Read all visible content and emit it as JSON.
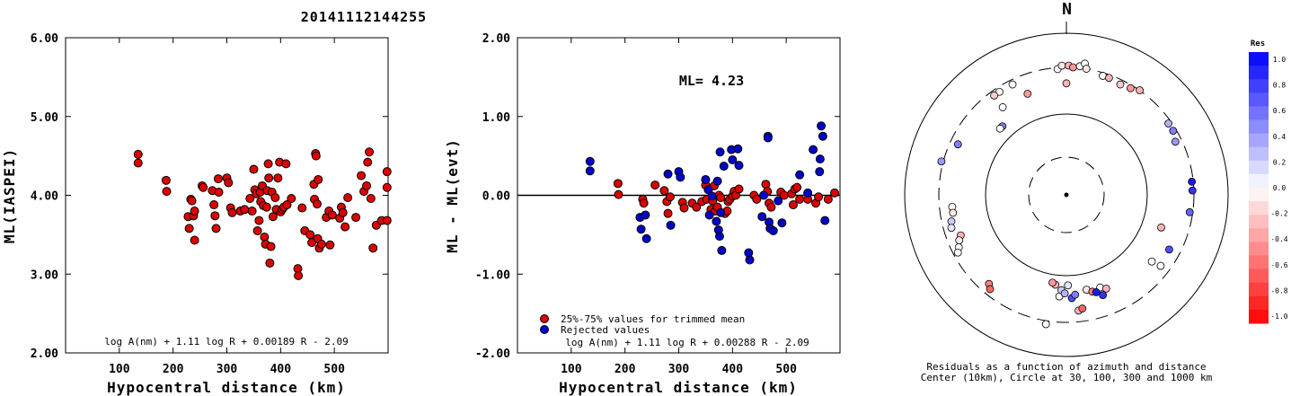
{
  "figure_title": "20141112144255",
  "chart_data": [
    {
      "type": "scatter",
      "xlabel": "Hypocentral distance (km)",
      "ylabel": "ML(IASPEI)",
      "xlim": [
        0,
        600
      ],
      "ylim": [
        2.0,
        6.0
      ],
      "xticks": [
        "100",
        "200",
        "300",
        "400",
        "500"
      ],
      "yticks": [
        "2.00",
        "3.00",
        "4.00",
        "5.00",
        "6.00"
      ],
      "formula": "log A(nm) + 1.11 log R + 0.00189 R - 2.09",
      "series": [
        {
          "color": "#dd0000",
          "points": [
            [
              135,
              4.52
            ],
            [
              135,
              4.41
            ],
            [
              187,
              4.19
            ],
            [
              188,
              4.05
            ],
            [
              228,
              3.73
            ],
            [
              230,
              3.58
            ],
            [
              233,
              3.95
            ],
            [
              235,
              3.93
            ],
            [
              238,
              3.74
            ],
            [
              240,
              3.43
            ],
            [
              240,
              3.8
            ],
            [
              254,
              4.12
            ],
            [
              256,
              4.1
            ],
            [
              273,
              4.06
            ],
            [
              276,
              3.88
            ],
            [
              278,
              3.74
            ],
            [
              280,
              3.58
            ],
            [
              284,
              4.21
            ],
            [
              285,
              4.04
            ],
            [
              300,
              4.22
            ],
            [
              303,
              4.16
            ],
            [
              307,
              3.84
            ],
            [
              310,
              3.78
            ],
            [
              325,
              3.8
            ],
            [
              333,
              3.82
            ],
            [
              343,
              3.96
            ],
            [
              347,
              3.8
            ],
            [
              350,
              4.33
            ],
            [
              352,
              4.07
            ],
            [
              355,
              4.02
            ],
            [
              357,
              3.55
            ],
            [
              360,
              3.68
            ],
            [
              362,
              4.04
            ],
            [
              363,
              3.92
            ],
            [
              366,
              4.12
            ],
            [
              368,
              3.87
            ],
            [
              370,
              3.47
            ],
            [
              372,
              3.38
            ],
            [
              374,
              3.85
            ],
            [
              375,
              4.06
            ],
            [
              377,
              4.4
            ],
            [
              378,
              4.22
            ],
            [
              380,
              3.14
            ],
            [
              382,
              3.35
            ],
            [
              384,
              4.04
            ],
            [
              386,
              3.73
            ],
            [
              390,
              3.97
            ],
            [
              392,
              3.82
            ],
            [
              395,
              4.22
            ],
            [
              398,
              4.42
            ],
            [
              400,
              3.79
            ],
            [
              403,
              3.82
            ],
            [
              406,
              3.85
            ],
            [
              410,
              4.4
            ],
            [
              412,
              3.88
            ],
            [
              420,
              3.96
            ],
            [
              432,
              3.07
            ],
            [
              433,
              2.98
            ],
            [
              440,
              3.84
            ],
            [
              445,
              3.55
            ],
            [
              455,
              3.5
            ],
            [
              458,
              3.4
            ],
            [
              462,
              4.14
            ],
            [
              463,
              3.95
            ],
            [
              465,
              4.53
            ],
            [
              466,
              4.5
            ],
            [
              468,
              3.89
            ],
            [
              469,
              3.45
            ],
            [
              470,
              4.2
            ],
            [
              472,
              3.33
            ],
            [
              476,
              3.38
            ],
            [
              485,
              3.72
            ],
            [
              490,
              3.8
            ],
            [
              492,
              3.37
            ],
            [
              496,
              3.75
            ],
            [
              510,
              3.71
            ],
            [
              513,
              3.85
            ],
            [
              516,
              3.78
            ],
            [
              520,
              3.6
            ],
            [
              525,
              3.97
            ],
            [
              540,
              3.72
            ],
            [
              550,
              4.25
            ],
            [
              555,
              4.05
            ],
            [
              560,
              4.12
            ],
            [
              562,
              4.42
            ],
            [
              565,
              4.55
            ],
            [
              568,
              3.96
            ],
            [
              572,
              3.33
            ],
            [
              578,
              3.62
            ],
            [
              588,
              3.68
            ],
            [
              598,
              3.68
            ],
            [
              598,
              4.1
            ],
            [
              598,
              4.3
            ]
          ]
        }
      ]
    },
    {
      "type": "scatter",
      "xlabel": "Hypocentral distance (km)",
      "ylabel": "ML - ML(evt)",
      "xlim": [
        0,
        600
      ],
      "ylim": [
        -2.0,
        2.0
      ],
      "xticks": [
        "100",
        "200",
        "300",
        "400",
        "500"
      ],
      "yticks": [
        "-2.00",
        "-1.00",
        "0.00",
        "1.00",
        "2.00"
      ],
      "annotation": "ML= 4.23",
      "formula": "log A(nm) + 1.11 log R + 0.00288 R - 2.09",
      "legend": [
        {
          "label": "25%-75% values for trimmed mean",
          "color": "#dd0000"
        },
        {
          "label": "Rejected values",
          "color": "#0000cc"
        }
      ],
      "series": [
        {
          "name": "25%-75% values for trimmed mean",
          "color": "#dd0000",
          "points": [
            [
              187,
              0.15
            ],
            [
              188,
              0.01
            ],
            [
              233,
              -0.05
            ],
            [
              235,
              -0.1
            ],
            [
              256,
              0.13
            ],
            [
              273,
              0.06
            ],
            [
              278,
              -0.08
            ],
            [
              280,
              -0.23
            ],
            [
              284,
              -0.02
            ],
            [
              307,
              -0.09
            ],
            [
              310,
              -0.16
            ],
            [
              325,
              -0.1
            ],
            [
              333,
              -0.15
            ],
            [
              343,
              -0.08
            ],
            [
              350,
              0.13
            ],
            [
              352,
              -0.05
            ],
            [
              360,
              -0.18
            ],
            [
              363,
              -0.07
            ],
            [
              366,
              0.12
            ],
            [
              368,
              -0.2
            ],
            [
              372,
              -0.15
            ],
            [
              375,
              0.0
            ],
            [
              378,
              -0.03
            ],
            [
              386,
              -0.23
            ],
            [
              390,
              -0.2
            ],
            [
              392,
              -0.08
            ],
            [
              395,
              -0.05
            ],
            [
              400,
              -0.01
            ],
            [
              403,
              0.05
            ],
            [
              406,
              0.0
            ],
            [
              412,
              0.08
            ],
            [
              440,
              0.0
            ],
            [
              445,
              -0.05
            ],
            [
              462,
              0.14
            ],
            [
              465,
              0.05
            ],
            [
              468,
              -0.1
            ],
            [
              472,
              -0.15
            ],
            [
              490,
              0.04
            ],
            [
              496,
              0.0
            ],
            [
              510,
              0.02
            ],
            [
              513,
              -0.12
            ],
            [
              516,
              0.08
            ],
            [
              520,
              0.1
            ],
            [
              525,
              -0.05
            ],
            [
              540,
              -0.05
            ],
            [
              555,
              -0.1
            ],
            [
              560,
              -0.02
            ],
            [
              578,
              -0.05
            ],
            [
              590,
              0.03
            ]
          ]
        },
        {
          "name": "Rejected values",
          "color": "#0000cc",
          "points": [
            [
              135,
              0.43
            ],
            [
              135,
              0.31
            ],
            [
              228,
              -0.28
            ],
            [
              230,
              -0.43
            ],
            [
              238,
              -0.25
            ],
            [
              240,
              -0.55
            ],
            [
              280,
              0.27
            ],
            [
              285,
              -0.38
            ],
            [
              300,
              0.3
            ],
            [
              303,
              0.23
            ],
            [
              350,
              0.2
            ],
            [
              355,
              0.07
            ],
            [
              357,
              -0.25
            ],
            [
              362,
              -0.01
            ],
            [
              370,
              -0.33
            ],
            [
              372,
              0.18
            ],
            [
              374,
              -0.44
            ],
            [
              376,
              -0.52
            ],
            [
              377,
              0.55
            ],
            [
              378,
              -0.22
            ],
            [
              380,
              -0.7
            ],
            [
              384,
              0.37
            ],
            [
              398,
              0.58
            ],
            [
              400,
              0.45
            ],
            [
              410,
              0.59
            ],
            [
              412,
              0.38
            ],
            [
              430,
              -0.73
            ],
            [
              432,
              -0.82
            ],
            [
              455,
              -0.27
            ],
            [
              458,
              0.0
            ],
            [
              466,
              0.75
            ],
            [
              466,
              0.73
            ],
            [
              468,
              -0.34
            ],
            [
              470,
              -0.42
            ],
            [
              476,
              -0.45
            ],
            [
              485,
              -0.07
            ],
            [
              492,
              -0.35
            ],
            [
              525,
              0.26
            ],
            [
              540,
              0.03
            ],
            [
              550,
              0.58
            ],
            [
              562,
              0.3
            ],
            [
              563,
              0.46
            ],
            [
              565,
              0.88
            ],
            [
              568,
              0.75
            ],
            [
              572,
              -0.32
            ]
          ]
        }
      ]
    },
    {
      "type": "polar-scatter",
      "north_label": "N",
      "caption_line1": "Residuals as a function of azimuth and distance",
      "caption_line2": "Center (10km), Circle at 30, 100, 300 and 1000 km",
      "colorbar_title": "Res",
      "colorbar_ticks": [
        "1.0",
        "0.8",
        "0.6",
        "0.4",
        "0.2",
        "0.0",
        "-0.2",
        "-0.4",
        "-0.6",
        "-0.8",
        "-1.0"
      ],
      "points": [
        {
          "az": -4,
          "r": 0.78,
          "res": 0.0
        },
        {
          "az": -2,
          "r": 0.8,
          "res": -0.1
        },
        {
          "az": 1,
          "r": 0.8,
          "res": -0.3
        },
        {
          "az": 3,
          "r": 0.79,
          "res": -0.4
        },
        {
          "az": 6,
          "r": 0.8,
          "res": 0.0
        },
        {
          "az": 8,
          "r": 0.82,
          "res": 0.0
        },
        {
          "az": 9,
          "r": 0.79,
          "res": -0.1
        },
        {
          "az": 0,
          "r": 0.69,
          "res": -0.3
        },
        {
          "az": 17,
          "r": 0.77,
          "res": 0.0
        },
        {
          "az": 20,
          "r": 0.77,
          "res": -0.3
        },
        {
          "az": 26,
          "r": 0.76,
          "res": -0.2
        },
        {
          "az": 31,
          "r": 0.77,
          "res": -0.4
        },
        {
          "az": 35,
          "r": 0.79,
          "res": -0.3
        },
        {
          "az": -26,
          "r": 0.76,
          "res": 0.0
        },
        {
          "az": -21,
          "r": 0.67,
          "res": -0.4
        },
        {
          "az": -33,
          "r": 0.76,
          "res": 0.0
        },
        {
          "az": -36,
          "r": 0.76,
          "res": -0.2
        },
        {
          "az": -36,
          "r": 0.67,
          "res": 0.0
        },
        {
          "az": -43,
          "r": 0.58,
          "res": 0.5
        },
        {
          "az": -45,
          "r": 0.58,
          "res": 0.0
        },
        {
          "az": 55,
          "r": 0.77,
          "res": 0.3
        },
        {
          "az": 59,
          "r": 0.77,
          "res": 0.5
        },
        {
          "az": 64,
          "r": 0.75,
          "res": 0.4
        },
        {
          "az": -65,
          "r": 0.74,
          "res": 0.5
        },
        {
          "az": -75,
          "r": 0.8,
          "res": 0.4
        },
        {
          "az": 84,
          "r": 0.78,
          "res": 0.9
        },
        {
          "az": 88,
          "r": 0.78,
          "res": 0.8
        },
        {
          "az": 98,
          "r": 0.77,
          "res": 0.6
        },
        {
          "az": -96,
          "r": 0.71,
          "res": 0.0
        },
        {
          "az": -99,
          "r": 0.71,
          "res": -0.1
        },
        {
          "az": -103,
          "r": 0.73,
          "res": 0.2
        },
        {
          "az": -106,
          "r": 0.74,
          "res": 0.1
        },
        {
          "az": -111,
          "r": 0.7,
          "res": -0.3
        },
        {
          "az": -113,
          "r": 0.72,
          "res": -0.1
        },
        {
          "az": -116,
          "r": 0.74,
          "res": 0.0
        },
        {
          "az": -118,
          "r": 0.76,
          "res": 0.0
        },
        {
          "az": 109,
          "r": 0.62,
          "res": -0.3
        },
        {
          "az": 118,
          "r": 0.72,
          "res": 0.7
        },
        {
          "az": 127,
          "r": 0.73,
          "res": 0.0
        },
        {
          "az": 128,
          "r": 0.67,
          "res": 0.0
        },
        {
          "az": -139,
          "r": 0.73,
          "res": -0.5
        },
        {
          "az": -141,
          "r": 0.75,
          "res": -0.6
        },
        {
          "az": -173,
          "r": 0.56,
          "res": -0.3
        },
        {
          "az": -171,
          "r": 0.55,
          "res": -0.4
        },
        {
          "az": -176,
          "r": 0.63,
          "res": 0.0
        },
        {
          "az": -177,
          "r": 0.59,
          "res": 0.2
        },
        {
          "az": -179,
          "r": 0.61,
          "res": 0.3
        },
        {
          "az": 179,
          "r": 0.56,
          "res": 0.1
        },
        {
          "az": 177,
          "r": 0.64,
          "res": 0.7
        },
        {
          "az": 175,
          "r": 0.62,
          "res": 0.5
        },
        {
          "az": 174,
          "r": 0.72,
          "res": -0.3
        },
        {
          "az": 172,
          "r": 0.71,
          "res": -0.6
        },
        {
          "az": 168,
          "r": 0.6,
          "res": -0.1
        },
        {
          "az": 165,
          "r": 0.62,
          "res": -0.5
        },
        {
          "az": 160,
          "r": 0.61,
          "res": 0.0
        },
        {
          "az": 157,
          "r": 0.63,
          "res": -0.3
        },
        {
          "az": -171,
          "r": 0.81,
          "res": 0.0
        },
        {
          "az": 163,
          "r": 0.63,
          "res": 0.9
        },
        {
          "az": 160,
          "r": 0.66,
          "res": 0.8
        }
      ]
    }
  ]
}
